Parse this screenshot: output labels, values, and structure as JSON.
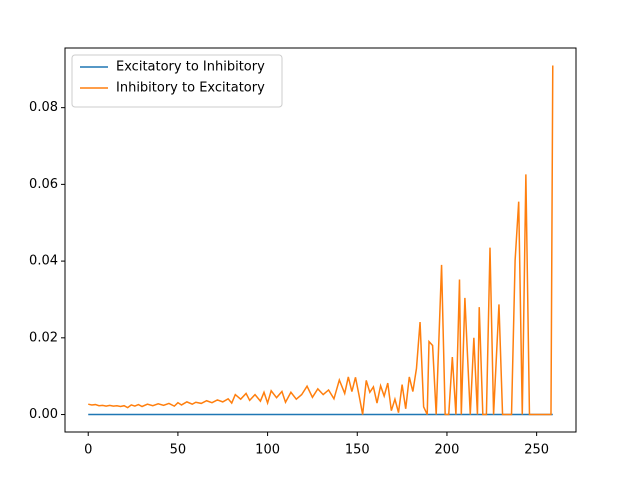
{
  "chart_data": {
    "type": "line",
    "x": [
      0,
      2,
      4,
      6,
      8,
      10,
      12,
      14,
      16,
      18,
      20,
      22,
      24,
      26,
      28,
      30,
      33,
      36,
      39,
      42,
      45,
      48,
      50,
      52,
      55,
      58,
      60,
      63,
      66,
      69,
      72,
      75,
      78,
      80,
      82,
      85,
      88,
      90,
      93,
      96,
      98,
      100,
      102,
      105,
      108,
      110,
      113,
      116,
      119,
      122,
      125,
      128,
      131,
      134,
      137,
      140,
      143,
      145,
      147,
      149,
      151,
      153,
      155,
      157,
      159,
      161,
      163,
      165,
      167,
      169,
      171,
      173,
      175,
      177,
      179,
      181,
      183,
      185,
      187,
      189,
      190,
      192,
      194,
      197,
      199,
      201,
      203,
      205,
      207,
      208,
      210,
      211,
      213,
      215,
      217,
      218,
      220,
      222,
      224,
      226,
      229,
      231,
      234,
      236,
      238,
      240,
      242,
      244,
      246,
      250,
      255,
      258,
      259
    ],
    "series": [
      {
        "name": "Excitatory to Inhibitory",
        "color": "#1f77b4",
        "values": [
          0,
          0,
          0,
          0,
          0,
          0,
          0,
          0,
          0,
          0,
          0,
          0,
          0,
          0,
          0,
          0,
          0,
          0,
          0,
          0,
          0,
          0,
          0,
          0,
          0,
          0,
          0,
          0,
          0,
          0,
          0,
          0,
          0,
          0,
          0,
          0,
          0,
          0,
          0,
          0,
          0,
          0,
          0,
          0,
          0,
          0,
          0,
          0,
          0,
          0,
          0,
          0,
          0,
          0,
          0,
          0,
          0,
          0,
          0,
          0,
          0,
          0,
          0,
          0,
          0,
          0,
          0,
          0,
          0,
          0,
          0,
          0,
          0,
          0,
          0,
          0,
          0,
          0,
          0,
          0,
          0,
          0,
          0,
          0,
          0,
          0,
          0,
          0,
          0,
          0,
          0,
          0,
          0,
          0,
          0,
          0,
          0,
          0,
          0,
          0,
          0,
          0,
          0,
          0,
          0,
          0,
          0,
          0,
          0,
          0,
          0,
          0,
          0
        ]
      },
      {
        "name": "Inhibitory to Excitatory",
        "color": "#ff7f0e",
        "values": [
          0.0027,
          0.0025,
          0.0026,
          0.0023,
          0.0024,
          0.0022,
          0.0024,
          0.0022,
          0.0023,
          0.0021,
          0.0023,
          0.0018,
          0.0025,
          0.0022,
          0.0026,
          0.0021,
          0.0027,
          0.0023,
          0.0028,
          0.0024,
          0.0029,
          0.0022,
          0.0031,
          0.0025,
          0.0033,
          0.0027,
          0.0032,
          0.0029,
          0.0036,
          0.0031,
          0.0038,
          0.0033,
          0.0041,
          0.003,
          0.0052,
          0.004,
          0.0055,
          0.0037,
          0.0052,
          0.0035,
          0.0058,
          0.003,
          0.0062,
          0.0044,
          0.006,
          0.0032,
          0.0058,
          0.004,
          0.0052,
          0.0074,
          0.0045,
          0.0067,
          0.0052,
          0.0064,
          0.0041,
          0.009,
          0.0055,
          0.0098,
          0.006,
          0.0097,
          0.005,
          0,
          0.0089,
          0.0058,
          0.0072,
          0.003,
          0.0075,
          0.0048,
          0.0082,
          0.001,
          0.004,
          0.0005,
          0.0078,
          0.0015,
          0.0098,
          0.006,
          0.012,
          0.0241,
          0.002,
          0,
          0.019,
          0.018,
          0,
          0.039,
          0,
          0,
          0.015,
          0,
          0.0352,
          0,
          0.0304,
          0.02,
          0,
          0.02,
          0,
          0.028,
          0,
          0,
          0.0435,
          0,
          0.0287,
          0,
          0,
          0,
          0.0402,
          0.0555,
          0,
          0.0626,
          0,
          0,
          0,
          0,
          0.091
        ]
      }
    ],
    "xlim": [
      -12.95,
      271.95
    ],
    "xticks": [
      0,
      50,
      100,
      150,
      200,
      250
    ],
    "ylim": [
      -0.00455,
      0.09555
    ],
    "yticks": [
      {
        "value": 0,
        "label": "0.00"
      },
      {
        "value": 0.02,
        "label": "0.02"
      },
      {
        "value": 0.04,
        "label": "0.04"
      },
      {
        "value": 0.06,
        "label": "0.06"
      },
      {
        "value": 0.08,
        "label": "0.08"
      }
    ],
    "legend": "upper left"
  }
}
